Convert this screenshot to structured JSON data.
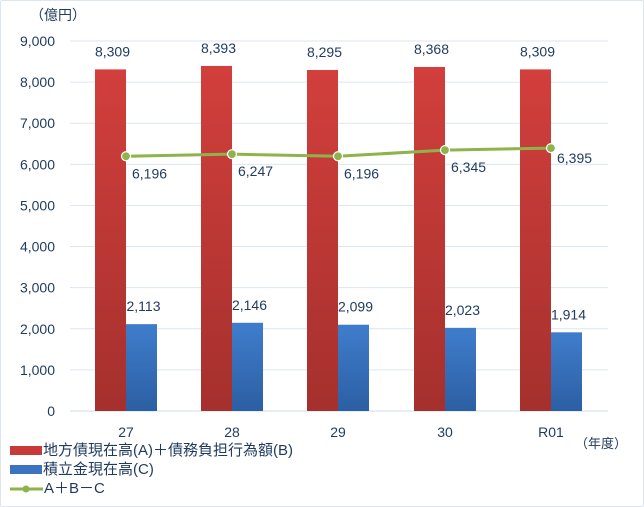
{
  "chart_data": {
    "type": "bar",
    "title": "",
    "ylabel": "（億円）",
    "xlabel": "（年度）",
    "ylim": [
      0,
      9000
    ],
    "yticks": [
      0,
      1000,
      2000,
      3000,
      4000,
      5000,
      6000,
      7000,
      8000,
      9000
    ],
    "ytick_labels": [
      "0",
      "1,000",
      "2,000",
      "3,000",
      "4,000",
      "5,000",
      "6,000",
      "7,000",
      "8,000",
      "9,000"
    ],
    "grid": true,
    "legend_position": "bottom-left",
    "categories": [
      "27",
      "28",
      "29",
      "30",
      "R01"
    ],
    "series": [
      {
        "name": "地方債現在高(A)＋債務負担行為額(B)",
        "type": "bar",
        "color": "#c83a3a",
        "values": [
          8309,
          8393,
          8295,
          8368,
          8309
        ],
        "labels": [
          "8,309",
          "8,393",
          "8,295",
          "8,368",
          "8,309"
        ]
      },
      {
        "name": "積立金現在高(C)",
        "type": "bar",
        "color": "#3b73c2",
        "values": [
          2113,
          2146,
          2099,
          2023,
          1914
        ],
        "labels": [
          "2,113",
          "2,146",
          "2,099",
          "2,023",
          "1,914"
        ]
      },
      {
        "name": "A＋B－C",
        "type": "line",
        "color": "#8db34a",
        "values": [
          6196,
          6247,
          6196,
          6345,
          6395
        ],
        "labels": [
          "6,196",
          "6,247",
          "6,196",
          "6,345",
          "6,395"
        ]
      }
    ]
  },
  "labels": {
    "y_unit": "（億円）",
    "x_unit": "（年度）"
  },
  "legend": [
    {
      "label": "地方債現在高(A)＋債務負担行為額(B)"
    },
    {
      "label": "積立金現在高(C)"
    },
    {
      "label": "A＋B－C"
    }
  ]
}
